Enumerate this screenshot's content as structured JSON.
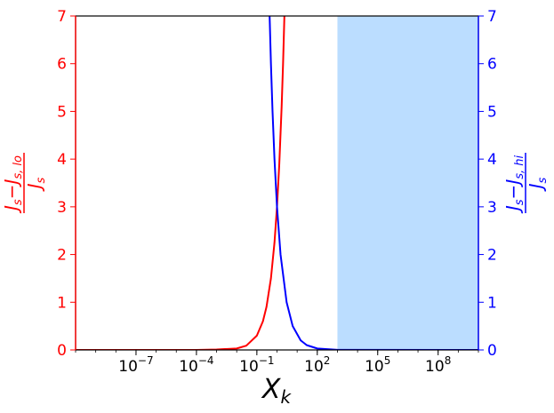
{
  "chart_data": {
    "type": "line",
    "xlabel": "X",
    "xlabel_sub": "k",
    "xscale": "log",
    "xlim": [
      1e-10,
      10000000000.0
    ],
    "x_ticks": [
      1e-07,
      0.0001,
      0.1,
      100,
      100000.0,
      100000000.0
    ],
    "x_tick_labels": [
      {
        "base": "10",
        "exp": "−7"
      },
      {
        "base": "10",
        "exp": "−4"
      },
      {
        "base": "10",
        "exp": "−1"
      },
      {
        "base": "10",
        "exp": "2"
      },
      {
        "base": "10",
        "exp": "5"
      },
      {
        "base": "10",
        "exp": "8"
      }
    ],
    "y_left": {
      "label": {
        "num_main": "J",
        "num_main_sub": "s",
        "minus": "−",
        "num_term": "J",
        "num_term_sub": "s, lo",
        "den": "J",
        "den_sub": "s"
      },
      "ylim": [
        0,
        7
      ],
      "ticks": [
        "0",
        "1",
        "2",
        "3",
        "4",
        "5",
        "6",
        "7"
      ],
      "color": "#ff0000"
    },
    "y_right": {
      "label": {
        "num_main": "J",
        "num_main_sub": "s",
        "minus": "−",
        "num_term": "J",
        "num_term_sub": "s, hi",
        "den": "J",
        "den_sub": "s"
      },
      "ylim": [
        0,
        7
      ],
      "ticks": [
        "0",
        "1",
        "2",
        "3",
        "4",
        "5",
        "6",
        "7"
      ],
      "color": "#0000ff"
    },
    "shaded_region": {
      "x_start": 1000,
      "x_end": 10000000000.0,
      "color": "#bbddff"
    },
    "series": [
      {
        "axis": "left",
        "color": "#ff0000",
        "points": [
          [
            1e-10,
            0
          ],
          [
            0.0001,
            0
          ],
          [
            0.001,
            0.01
          ],
          [
            0.01,
            0.03
          ],
          [
            0.03,
            0.09
          ],
          [
            0.1,
            0.3
          ],
          [
            0.2,
            0.6
          ],
          [
            0.3,
            0.9
          ],
          [
            0.5,
            1.5
          ],
          [
            0.75,
            2.25
          ],
          [
            1,
            3.0
          ],
          [
            1.3,
            3.9
          ],
          [
            1.7,
            5.1
          ],
          [
            2,
            6.0
          ],
          [
            2.33,
            7.0
          ]
        ]
      },
      {
        "axis": "right",
        "color": "#0000ff",
        "points": [
          [
            0.43,
            7.0
          ],
          [
            0.5,
            6.0
          ],
          [
            0.6,
            5.0
          ],
          [
            0.75,
            4.0
          ],
          [
            1,
            3.0
          ],
          [
            1.5,
            2.0
          ],
          [
            3,
            1.0
          ],
          [
            6,
            0.5
          ],
          [
            15,
            0.2
          ],
          [
            30,
            0.1
          ],
          [
            100,
            0.03
          ],
          [
            1000,
            0.003
          ],
          [
            10000000000.0,
            0
          ]
        ]
      }
    ]
  }
}
